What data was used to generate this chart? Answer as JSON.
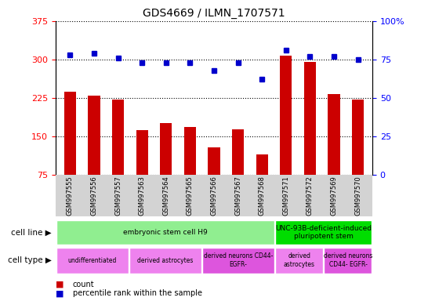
{
  "title": "GDS4669 / ILMN_1707571",
  "samples": [
    "GSM997555",
    "GSM997556",
    "GSM997557",
    "GSM997563",
    "GSM997564",
    "GSM997565",
    "GSM997566",
    "GSM997567",
    "GSM997568",
    "GSM997571",
    "GSM997572",
    "GSM997569",
    "GSM997570"
  ],
  "counts": [
    237,
    230,
    222,
    162,
    175,
    168,
    128,
    163,
    115,
    308,
    295,
    232,
    222
  ],
  "percentiles": [
    78,
    79,
    76,
    73,
    73,
    73,
    68,
    73,
    62,
    81,
    77,
    77,
    75
  ],
  "ylim_left": [
    75,
    375
  ],
  "ylim_right": [
    0,
    100
  ],
  "yticks_left": [
    75,
    150,
    225,
    300,
    375
  ],
  "yticks_right": [
    0,
    25,
    50,
    75,
    100
  ],
  "bar_color": "#cc0000",
  "dot_color": "#0000cc",
  "cell_line_groups": [
    {
      "label": "embryonic stem cell H9",
      "start": 0,
      "end": 9,
      "color": "#90ee90"
    },
    {
      "label": "UNC-93B-deficient-induced\npluripotent stem",
      "start": 9,
      "end": 13,
      "color": "#00dd00"
    }
  ],
  "cell_type_groups": [
    {
      "label": "undifferentiated",
      "start": 0,
      "end": 3,
      "color": "#ee82ee"
    },
    {
      "label": "derived astrocytes",
      "start": 3,
      "end": 6,
      "color": "#ee82ee"
    },
    {
      "label": "derived neurons CD44-\nEGFR-",
      "start": 6,
      "end": 9,
      "color": "#dd55dd"
    },
    {
      "label": "derived\nastrocytes",
      "start": 9,
      "end": 11,
      "color": "#ee82ee"
    },
    {
      "label": "derived neurons\nCD44- EGFR-",
      "start": 11,
      "end": 13,
      "color": "#dd55dd"
    }
  ],
  "legend_count_color": "#cc0000",
  "legend_dot_color": "#0000cc"
}
